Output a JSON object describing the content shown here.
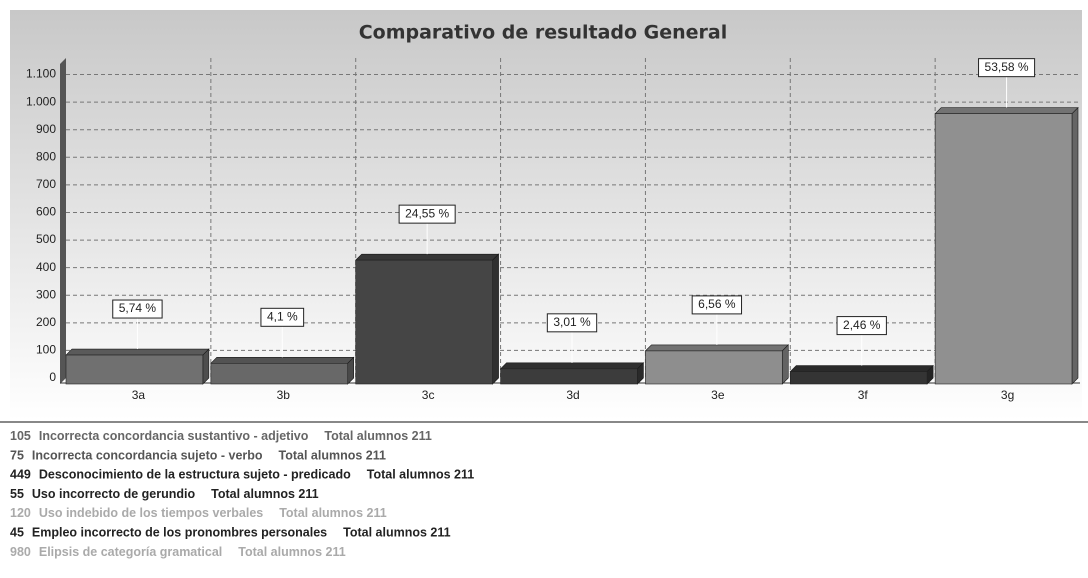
{
  "chart_data": {
    "type": "bar",
    "title": "Comparativo de resultado General",
    "categories": [
      "3a",
      "3b",
      "3c",
      "3d",
      "3e",
      "3f",
      "3g"
    ],
    "values": [
      105,
      75,
      449,
      55,
      120,
      45,
      980
    ],
    "data_labels": [
      "5,74 %",
      "4,1 %",
      "24,55 %",
      "3,01 %",
      "6,56 %",
      "2,46 %",
      "53,58 %"
    ],
    "colors": [
      "#707070",
      "#686868",
      "#454545",
      "#3c3c3c",
      "#8e8e8e",
      "#343434",
      "#909090"
    ],
    "ylim": [
      0,
      1160
    ],
    "yticks": [
      0,
      100,
      200,
      300,
      400,
      500,
      600,
      700,
      800,
      900,
      {
        "value": 1000,
        "label": "1.000"
      },
      {
        "value": 1100,
        "label": "1.100"
      }
    ],
    "grid": true,
    "legend": {
      "descriptions": [
        "Incorrecta concordancia sustantivo - adjetivo",
        "Incorrecta concordancia sujeto - verbo",
        "Desconocimiento de la estructura sujeto - predicado",
        "Uso incorrecto de gerundio",
        "Uso indebido de los tiempos verbales",
        "Empleo incorrecto de los pronombres personales",
        "Elipsis de categoría gramatical"
      ],
      "suffix": "Total alumnos 211",
      "colors": [
        "#666666",
        "#555555",
        "#222222",
        "#222222",
        "#aaaaaa",
        "#222222",
        "#aaaaaa"
      ]
    }
  }
}
